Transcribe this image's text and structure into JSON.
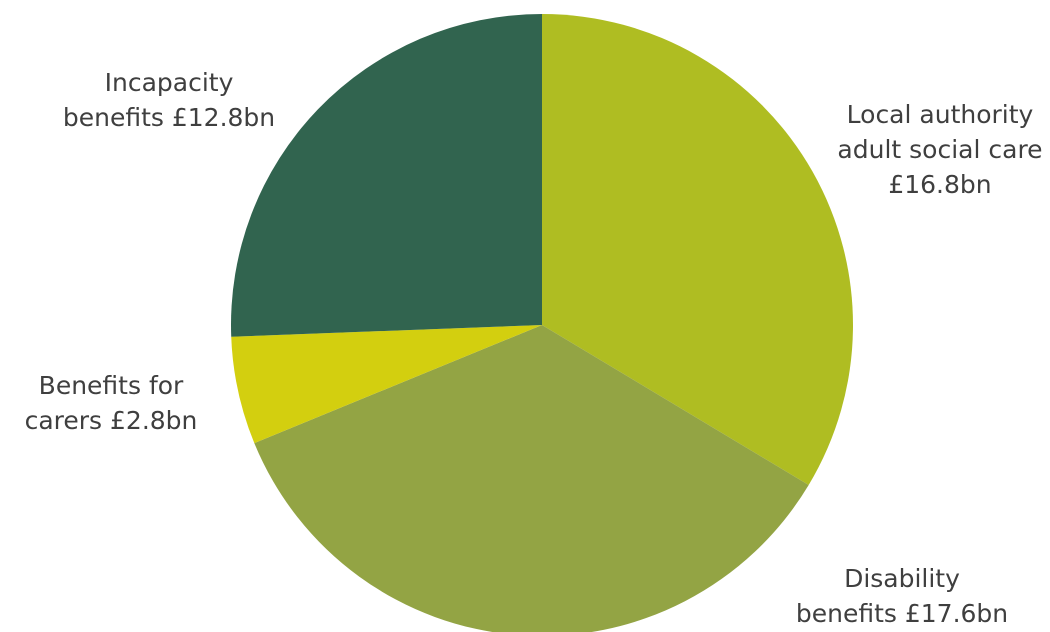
{
  "chart_data": {
    "type": "pie",
    "title": "",
    "slices": [
      {
        "label_lines": [
          "Local authority",
          "adult social care",
          "£16.8bn"
        ],
        "value": 16.8,
        "color": "#afbd22"
      },
      {
        "label_lines": [
          "Disability",
          "benefits £17.6bn"
        ],
        "value": 17.6,
        "color": "#93a444"
      },
      {
        "label_lines": [
          "Benefits for",
          "carers £2.8bn"
        ],
        "value": 2.8,
        "color": "#d3cf0f"
      },
      {
        "label_lines": [
          "Incapacity",
          "benefits £12.8bn"
        ],
        "value": 12.8,
        "color": "#31644f"
      }
    ],
    "start_angle": "12 o'clock",
    "direction": "clockwise",
    "legend": "none"
  }
}
